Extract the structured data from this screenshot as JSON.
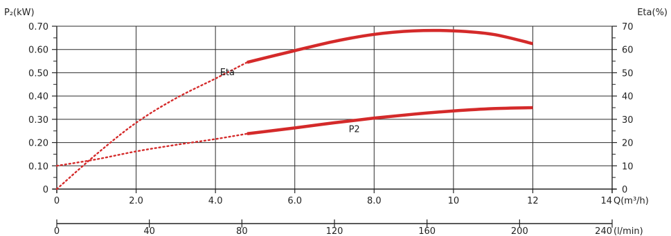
{
  "chart_data": {
    "type": "line",
    "left_axis": {
      "title": "P₂(kW)",
      "ylim": [
        0,
        0.7
      ],
      "ticks": [
        0,
        0.1,
        0.2,
        0.3,
        0.4,
        0.5,
        0.6,
        0.7
      ],
      "tick_labels": [
        "0",
        "0.10",
        "0.20",
        "0.30",
        "0.40",
        "0.50",
        "0.60",
        "0.70"
      ]
    },
    "right_axis": {
      "title": "Eta(%)",
      "ylim": [
        0,
        70
      ],
      "ticks": [
        0,
        10,
        20,
        30,
        40,
        50,
        60,
        70
      ],
      "tick_labels": [
        "0",
        "10",
        "20",
        "30",
        "40",
        "50",
        "60",
        "70"
      ]
    },
    "x_axis": {
      "title": "Q(m³/h)",
      "xlim": [
        0,
        14
      ],
      "ticks": [
        0,
        2,
        4,
        6,
        8,
        10,
        12,
        14
      ],
      "tick_labels": [
        "0",
        "2.0",
        "4.0",
        "6.0",
        "8.0",
        "10",
        "12",
        "14"
      ]
    },
    "x_axis_secondary": {
      "title": "(l/min)",
      "ticks": [
        0,
        40,
        80,
        120,
        160,
        200,
        240
      ],
      "tick_labels": [
        "0",
        "40",
        "80",
        "120",
        "160",
        "200",
        "240"
      ]
    },
    "grid": true,
    "series": [
      {
        "name": "Eta",
        "axis": "right",
        "color": "#d42a2a",
        "dotted": {
          "x": [
            0,
            1,
            2,
            3,
            4,
            4.8
          ],
          "y": [
            0,
            15,
            28.5,
            39,
            47.5,
            54.5
          ]
        },
        "solid": {
          "x": [
            4.8,
            6,
            7,
            8,
            9,
            10,
            11,
            12
          ],
          "y": [
            54.5,
            59.5,
            63.5,
            66.5,
            68,
            68,
            66.5,
            62.5
          ]
        }
      },
      {
        "name": "P2",
        "axis": "left",
        "color": "#d42a2a",
        "dotted": {
          "x": [
            0,
            1,
            2,
            3,
            4,
            4.8
          ],
          "y": [
            0.1,
            0.128,
            0.162,
            0.19,
            0.215,
            0.238
          ]
        },
        "solid": {
          "x": [
            4.8,
            6,
            7,
            8,
            9,
            10,
            11,
            12
          ],
          "y": [
            0.238,
            0.263,
            0.285,
            0.305,
            0.322,
            0.336,
            0.346,
            0.35
          ]
        }
      }
    ]
  }
}
